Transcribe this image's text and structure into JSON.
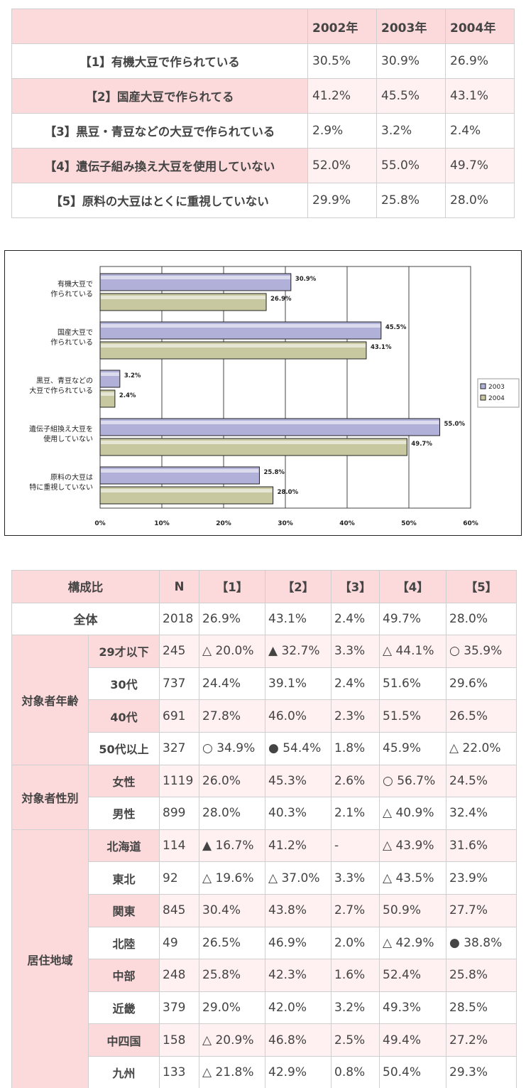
{
  "table1": {
    "years": [
      "2002年",
      "2003年",
      "2004年"
    ],
    "rows": [
      {
        "label": "【1】有機大豆で作られている",
        "values": [
          "30.5%",
          "30.9%",
          "26.9%"
        ]
      },
      {
        "label": "【2】国産大豆で作られてる",
        "values": [
          "41.2%",
          "45.5%",
          "43.1%"
        ]
      },
      {
        "label": "【3】黒豆・青豆などの大豆で作られている",
        "values": [
          "2.9%",
          "3.2%",
          "2.4%"
        ]
      },
      {
        "label": "【4】遺伝子組み換え大豆を使用していない",
        "values": [
          "52.0%",
          "55.0%",
          "49.7%"
        ]
      },
      {
        "label": "【5】原料の大豆はとくに重視していない",
        "values": [
          "29.9%",
          "25.8%",
          "28.0%"
        ]
      }
    ]
  },
  "chart_data": {
    "type": "bar",
    "orientation": "horizontal",
    "categories": [
      [
        "有機大豆で",
        "作られている"
      ],
      [
        "国産大豆で",
        "作られている"
      ],
      [
        "黒豆、青豆などの",
        "大豆で作られている"
      ],
      [
        "遺伝子組換え大豆を",
        "使用していない"
      ],
      [
        "原料の大豆は",
        "特に重視していない"
      ]
    ],
    "series": [
      {
        "name": "2003",
        "values": [
          30.9,
          45.5,
          3.2,
          55.0,
          25.8
        ],
        "labels": [
          "30.9%",
          "45.5%",
          "3.2%",
          "55.0%",
          "25.8%"
        ],
        "color": "#b0b0d8"
      },
      {
        "name": "2004",
        "values": [
          26.9,
          43.1,
          2.4,
          49.7,
          28.0
        ],
        "labels": [
          "26.9%",
          "43.1%",
          "2.4%",
          "49.7%",
          "28.0%"
        ],
        "color": "#c8c8a0"
      }
    ],
    "xticks": [
      "0%",
      "10%",
      "20%",
      "30%",
      "40%",
      "50%",
      "60%"
    ],
    "xlim": [
      0,
      60
    ],
    "legend": "right",
    "grid": true
  },
  "table3": {
    "headers": [
      "構成比",
      "N",
      "【1】",
      "【2】",
      "【3】",
      "【4】",
      "【5】"
    ],
    "overall": {
      "label": "全体",
      "n": "2018",
      "values": [
        "26.9%",
        "43.1%",
        "2.4%",
        "49.7%",
        "28.0%"
      ]
    },
    "groups": [
      {
        "label": "対象者年齢",
        "rows": [
          {
            "label": "29才以下",
            "n": "245",
            "values": [
              "△ 20.0%",
              "▲ 32.7%",
              "3.3%",
              "△ 44.1%",
              "○ 35.9%"
            ]
          },
          {
            "label": "30代",
            "n": "737",
            "values": [
              "24.4%",
              "39.1%",
              "2.4%",
              "51.6%",
              "29.6%"
            ]
          },
          {
            "label": "40代",
            "n": "691",
            "values": [
              "27.8%",
              "46.0%",
              "2.3%",
              "51.5%",
              "26.5%"
            ]
          },
          {
            "label": "50代以上",
            "n": "327",
            "values": [
              "○ 34.9%",
              "● 54.4%",
              "1.8%",
              "45.9%",
              "△ 22.0%"
            ]
          }
        ]
      },
      {
        "label": "対象者性別",
        "rows": [
          {
            "label": "女性",
            "n": "1119",
            "values": [
              "26.0%",
              "45.3%",
              "2.6%",
              "○ 56.7%",
              "24.5%"
            ]
          },
          {
            "label": "男性",
            "n": "899",
            "values": [
              "28.0%",
              "40.3%",
              "2.1%",
              "△ 40.9%",
              "32.4%"
            ]
          }
        ]
      },
      {
        "label": "居住地域",
        "rows": [
          {
            "label": "北海道",
            "n": "114",
            "values": [
              "▲ 16.7%",
              "41.2%",
              "-",
              "△ 43.9%",
              "31.6%"
            ]
          },
          {
            "label": "東北",
            "n": "92",
            "values": [
              "△ 19.6%",
              "△ 37.0%",
              "3.3%",
              "△ 43.5%",
              "23.9%"
            ]
          },
          {
            "label": "関東",
            "n": "845",
            "values": [
              "30.4%",
              "43.8%",
              "2.7%",
              "50.9%",
              "27.7%"
            ]
          },
          {
            "label": "北陸",
            "n": "49",
            "values": [
              "26.5%",
              "46.9%",
              "2.0%",
              "△ 42.9%",
              "● 38.8%"
            ]
          },
          {
            "label": "中部",
            "n": "248",
            "values": [
              "25.8%",
              "42.3%",
              "1.6%",
              "52.4%",
              "25.8%"
            ]
          },
          {
            "label": "近畿",
            "n": "379",
            "values": [
              "29.0%",
              "42.0%",
              "3.2%",
              "49.3%",
              "28.5%"
            ]
          },
          {
            "label": "中四国",
            "n": "158",
            "values": [
              "△ 20.9%",
              "46.8%",
              "2.5%",
              "49.4%",
              "27.2%"
            ]
          },
          {
            "label": "九州",
            "n": "133",
            "values": [
              "△ 21.8%",
              "42.9%",
              "0.8%",
              "50.4%",
              "29.3%"
            ]
          }
        ]
      }
    ]
  }
}
